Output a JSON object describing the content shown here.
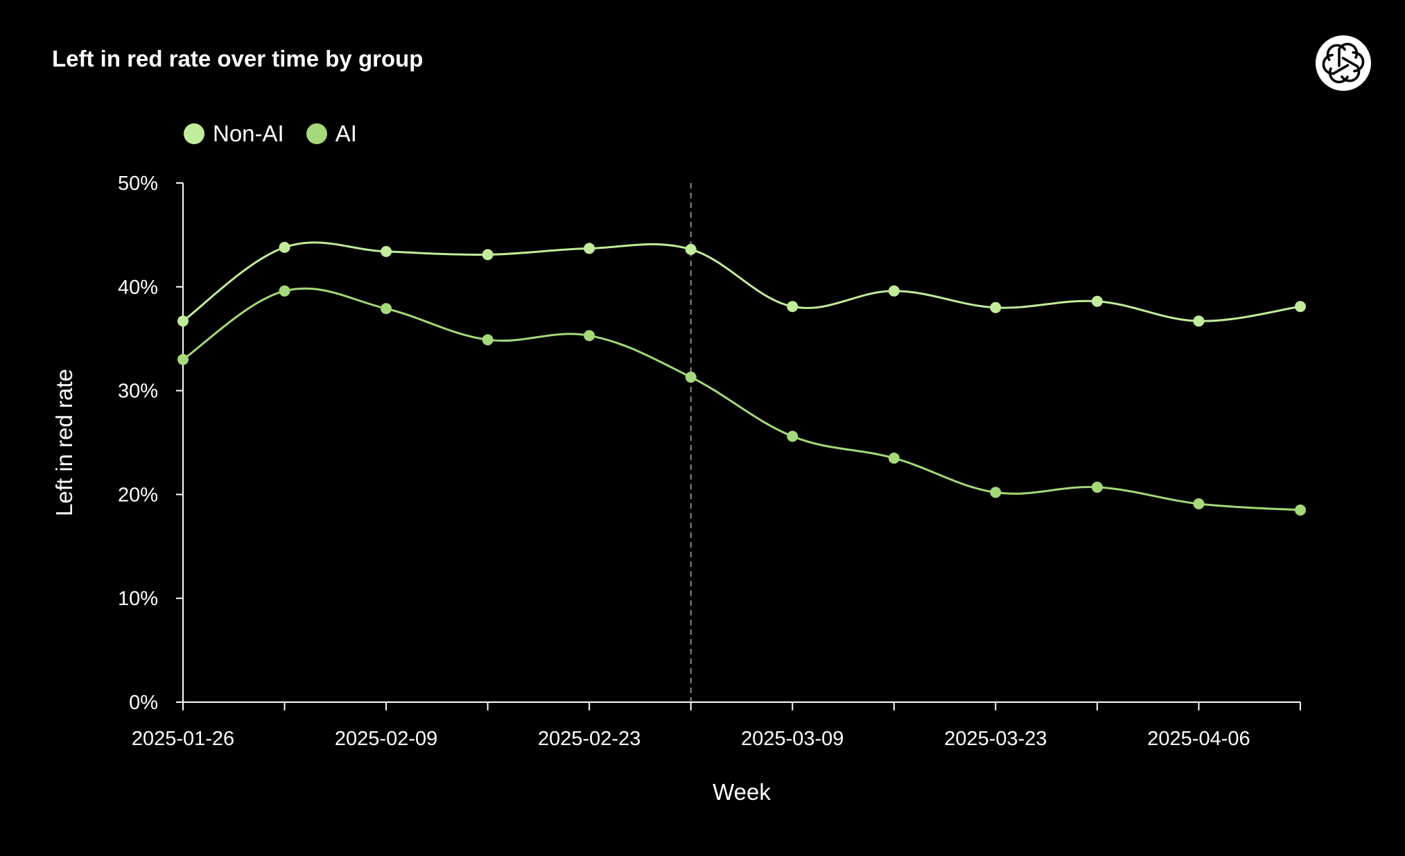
{
  "chart_data": {
    "type": "line",
    "title": "Left in red rate over time by group",
    "xlabel": "Week",
    "ylabel": "Left in red rate",
    "x": [
      "2025-01-26",
      "2025-02-02",
      "2025-02-09",
      "2025-02-16",
      "2025-02-23",
      "2025-03-02",
      "2025-03-09",
      "2025-03-16",
      "2025-03-23",
      "2025-03-30",
      "2025-04-06",
      "2025-04-13"
    ],
    "x_tick_labels": [
      "2025-01-26",
      "2025-02-09",
      "2025-02-23",
      "2025-03-09",
      "2025-03-23",
      "2025-04-06"
    ],
    "y_ticks": [
      0,
      10,
      20,
      30,
      40,
      50
    ],
    "y_tick_labels": [
      "0%",
      "10%",
      "20%",
      "30%",
      "40%",
      "50%"
    ],
    "ylim": [
      0,
      50
    ],
    "y_unit": "%",
    "vertical_reference_line": "2025-03-02",
    "grid": false,
    "legend_position": "top-left",
    "series": [
      {
        "name": "Non-AI",
        "color": "#c2ec9b",
        "values": [
          36.7,
          43.8,
          43.4,
          43.1,
          43.7,
          43.6,
          38.1,
          39.6,
          38.0,
          38.6,
          36.7,
          38.1
        ]
      },
      {
        "name": "AI",
        "color": "#a6d97a",
        "values": [
          33.0,
          39.6,
          37.9,
          34.9,
          35.3,
          31.3,
          25.6,
          23.5,
          20.2,
          20.7,
          19.1,
          18.5
        ]
      }
    ]
  },
  "brand": {
    "logo_icon": "openai-logo-icon",
    "logo_bg": "#ffffff"
  }
}
